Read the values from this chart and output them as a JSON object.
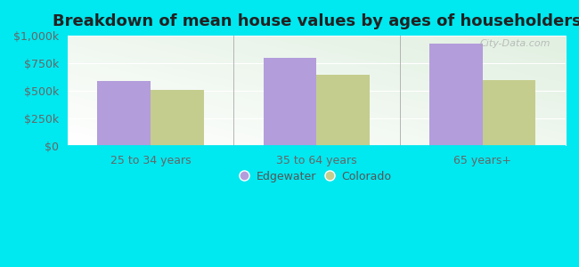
{
  "title": "Breakdown of mean house values by ages of householders",
  "categories": [
    "25 to 34 years",
    "35 to 64 years",
    "65 years+"
  ],
  "edgewater_values": [
    590000,
    800000,
    930000
  ],
  "colorado_values": [
    510000,
    650000,
    600000
  ],
  "edgewater_color": "#b39ddb",
  "colorado_color": "#c5cd8e",
  "background_outer": "#00e8f0",
  "ylim": [
    0,
    1000000
  ],
  "yticks": [
    0,
    250000,
    500000,
    750000,
    1000000
  ],
  "ytick_labels": [
    "$0",
    "$250k",
    "$500k",
    "$750k",
    "$1,000k"
  ],
  "bar_width": 0.32,
  "legend_labels": [
    "Edgewater",
    "Colorado"
  ],
  "title_fontsize": 13,
  "tick_fontsize": 9,
  "legend_fontsize": 9,
  "watermark_text": "City-Data.com"
}
